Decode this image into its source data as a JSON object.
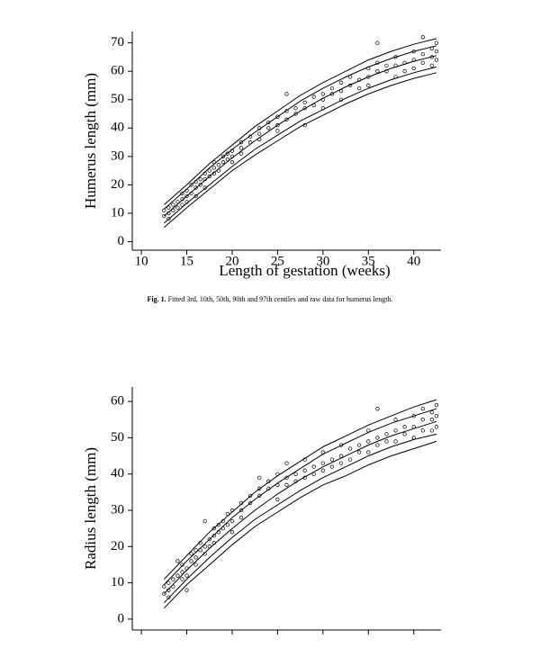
{
  "chart_data": [
    {
      "type": "line",
      "ylabel": "Humerus length (mm)",
      "xlabel": "Length of gestation (weeks)",
      "color": "#000000",
      "xlim": [
        9,
        43
      ],
      "ylim": [
        -3,
        74
      ],
      "xticks": [
        10,
        15,
        20,
        25,
        30,
        35,
        40
      ],
      "yticks": [
        0,
        10,
        20,
        30,
        40,
        50,
        60,
        70
      ],
      "show_xtick_labels": true,
      "x": [
        12.5,
        15,
        17.5,
        20,
        22.5,
        25,
        27.5,
        30,
        32.5,
        35,
        37.5,
        40,
        42.5
      ],
      "series": [
        {
          "values": [
            5,
            12,
            18.5,
            25,
            30.5,
            35.5,
            40.5,
            44.5,
            48.5,
            52,
            55,
            57.5,
            59.5
          ]
        },
        {
          "values": [
            6.5,
            13.5,
            20,
            26.5,
            32.5,
            37.5,
            42.5,
            46.5,
            50.5,
            54,
            57,
            59.5,
            61.5
          ]
        },
        {
          "values": [
            9,
            16,
            23,
            29.5,
            35.5,
            41,
            46,
            50.5,
            54.5,
            58,
            61,
            63.5,
            65.5
          ]
        },
        {
          "values": [
            11.5,
            18.5,
            26,
            32.5,
            38.5,
            44,
            49.5,
            54,
            58,
            61.5,
            64.5,
            67,
            69
          ]
        },
        {
          "values": [
            13,
            20,
            27.5,
            34,
            40.5,
            46,
            51.5,
            56,
            60,
            64,
            67,
            69.5,
            71.5
          ]
        }
      ],
      "points": {
        "x": [
          12.5,
          12.5,
          13,
          13,
          13,
          13.5,
          13.5,
          14,
          14,
          14.5,
          14.5,
          14.5,
          15,
          15,
          15,
          15.5,
          15.5,
          16,
          16,
          16,
          16.5,
          16.5,
          17,
          17,
          17,
          17.5,
          17.5,
          18,
          18,
          18,
          18.5,
          18.5,
          19,
          19,
          19.5,
          19.5,
          20,
          20,
          20,
          21,
          21,
          21,
          22,
          22,
          23,
          23,
          23,
          24,
          24,
          25,
          25,
          25,
          26,
          26,
          26,
          27,
          27,
          28,
          28,
          28,
          29,
          29,
          30,
          30,
          30,
          31,
          31,
          32,
          32,
          32,
          33,
          33,
          34,
          34,
          35,
          35,
          35,
          36,
          36,
          36,
          37,
          37,
          38,
          38,
          38,
          39,
          39,
          40,
          40,
          40,
          41,
          41,
          41,
          42,
          42,
          42,
          42.5,
          42.5,
          42.5
        ],
        "y": [
          9,
          11,
          10,
          12,
          8,
          13,
          11,
          12,
          14,
          15,
          13,
          17,
          16,
          14,
          18,
          20,
          17,
          19,
          21,
          16,
          20,
          22,
          22,
          24,
          19,
          23,
          25,
          26,
          24,
          28,
          27,
          25,
          28,
          30,
          29,
          31,
          30,
          32,
          28,
          33,
          31,
          35,
          35,
          37,
          38,
          36,
          40,
          40,
          42,
          41,
          44,
          39,
          43,
          46,
          52,
          45,
          47,
          47,
          49,
          41,
          48,
          51,
          50,
          52,
          47,
          52,
          54,
          53,
          56,
          50,
          55,
          58,
          57,
          54,
          58,
          61,
          55,
          60,
          63,
          70,
          60,
          62,
          62,
          65,
          58,
          63,
          60,
          64,
          67,
          61,
          66,
          63,
          72,
          65,
          68,
          62,
          67,
          70,
          64
        ]
      }
    },
    {
      "type": "line",
      "ylabel": "Radius length (mm)",
      "color": "#000000",
      "xlim": [
        9,
        43
      ],
      "ylim": [
        -3,
        64
      ],
      "xticks": [
        10,
        15,
        20,
        25,
        30,
        35,
        40
      ],
      "yticks": [
        0,
        10,
        20,
        30,
        40,
        50,
        60
      ],
      "show_xtick_labels": false,
      "x": [
        12.5,
        15,
        17.5,
        20,
        22.5,
        25,
        27.5,
        30,
        32.5,
        35,
        37.5,
        40,
        42.5
      ],
      "series": [
        {
          "values": [
            3,
            9.5,
            15,
            20.5,
            25.5,
            29.5,
            33.5,
            37,
            39.5,
            42.5,
            45,
            47,
            49
          ]
        },
        {
          "values": [
            4.5,
            11,
            17,
            22.5,
            27.5,
            31.5,
            35.5,
            39,
            42,
            45,
            47.5,
            49.5,
            51
          ]
        },
        {
          "values": [
            7,
            13.5,
            19.5,
            25,
            30,
            34.5,
            38.5,
            42,
            45,
            48,
            50.5,
            52.5,
            54.5
          ]
        },
        {
          "values": [
            9.5,
            16,
            22,
            28,
            33,
            37.5,
            41.5,
            45.5,
            48.5,
            51.5,
            54,
            56,
            58
          ]
        },
        {
          "values": [
            11,
            17.5,
            24,
            29.5,
            35,
            39.5,
            43.5,
            47.5,
            50.5,
            53.5,
            56,
            58.5,
            60.5
          ]
        }
      ],
      "points": {
        "x": [
          12.5,
          12.5,
          13,
          13,
          13,
          13.5,
          13.5,
          14,
          14,
          14.5,
          14.5,
          14.5,
          15,
          15,
          15,
          15.5,
          15.5,
          16,
          16,
          16,
          16.5,
          16.5,
          17,
          17,
          17,
          17.5,
          17.5,
          18,
          18,
          18,
          18.5,
          18.5,
          19,
          19,
          19.5,
          19.5,
          20,
          20,
          20,
          21,
          21,
          21,
          22,
          22,
          23,
          23,
          23,
          24,
          24,
          25,
          25,
          25,
          26,
          26,
          26,
          27,
          27,
          28,
          28,
          28,
          29,
          29,
          30,
          30,
          30,
          31,
          31,
          32,
          32,
          32,
          33,
          33,
          34,
          34,
          35,
          35,
          35,
          36,
          36,
          36,
          37,
          37,
          38,
          38,
          38,
          39,
          39,
          40,
          40,
          40,
          41,
          41,
          41,
          42,
          42,
          42,
          42.5,
          42.5,
          42.5
        ],
        "y": [
          7,
          9,
          8,
          10,
          6,
          11,
          9,
          12,
          16,
          13,
          11,
          15,
          14,
          12,
          8,
          16,
          18,
          17,
          15,
          19,
          19,
          21,
          20,
          18,
          27,
          20,
          22,
          23,
          21,
          25,
          24,
          26,
          25,
          27,
          26,
          29,
          27,
          30,
          24,
          30,
          28,
          32,
          32,
          34,
          34,
          36,
          39,
          36,
          38,
          37,
          40,
          33,
          39,
          37,
          43,
          40,
          38,
          41,
          44,
          39,
          42,
          40,
          43,
          46,
          41,
          44,
          42,
          45,
          48,
          43,
          47,
          44,
          48,
          46,
          49,
          52,
          46,
          50,
          48,
          58,
          51,
          49,
          52,
          55,
          49,
          53,
          51,
          53,
          56,
          50,
          55,
          52,
          58,
          55,
          57,
          52,
          56,
          59,
          53
        ]
      }
    }
  ],
  "caption": {
    "label": "Fig. 1.",
    "text": "Fitted 3rd, 10th, 50th, 90th and 97th centiles and raw data for humerus length."
  }
}
